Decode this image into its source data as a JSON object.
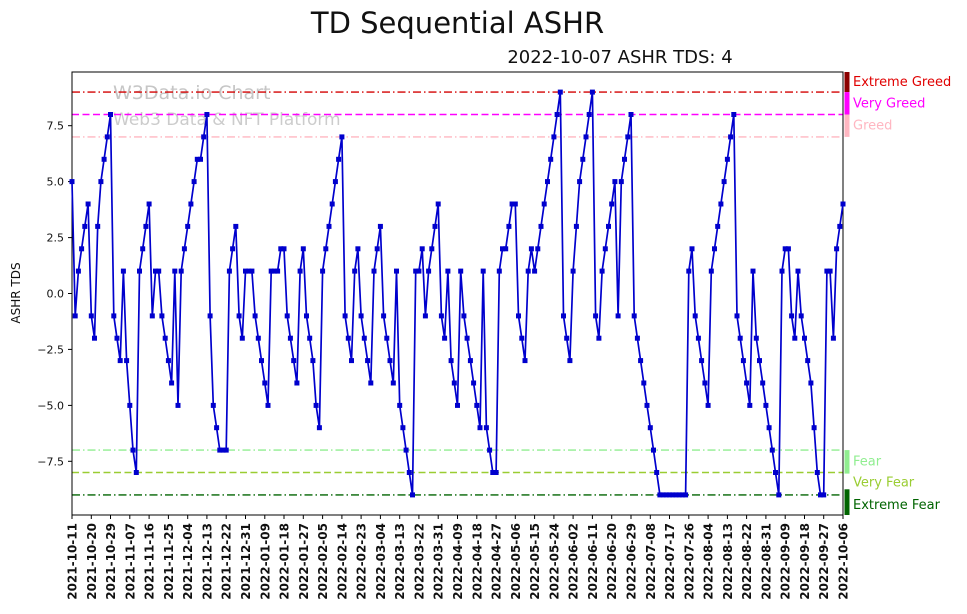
{
  "page": {
    "title": "TD Sequential ASHR",
    "subtitle": "2022-10-07 ASHR TDS: 4",
    "y_axis_label": "ASHR TDS",
    "watermark_line1": "W3Data.io Chart",
    "watermark_line2": "Web3 Data & NFT Platform"
  },
  "chart_data": {
    "type": "line",
    "title": "TD Sequential ASHR",
    "subtitle": "2022-10-07 ASHR TDS: 4",
    "ylabel": "ASHR TDS",
    "ylim": [
      -9.9,
      9.9
    ],
    "grid": false,
    "legend": false,
    "y_ticks": [
      7.5,
      5.0,
      2.5,
      0.0,
      -2.5,
      -5.0,
      -7.5
    ],
    "y_tick_labels": [
      "7.5",
      "5.0",
      "2.5",
      "0.0",
      "−2.5",
      "−5.0",
      "−7.5"
    ],
    "x_tick_every": 6,
    "x_tick_labels": [
      "2021-10-11",
      "2021-10-20",
      "2021-10-29",
      "2021-11-07",
      "2021-11-16",
      "2021-11-25",
      "2021-12-04",
      "2021-12-13",
      "2021-12-22",
      "2021-12-31",
      "2022-01-09",
      "2022-01-18",
      "2022-01-27",
      "2022-02-05",
      "2022-02-14",
      "2022-02-23",
      "2022-03-04",
      "2022-03-13",
      "2022-03-22",
      "2022-03-31",
      "2022-04-09",
      "2022-04-18",
      "2022-04-27",
      "2022-05-06",
      "2022-05-15",
      "2022-05-24",
      "2022-06-02",
      "2022-06-11",
      "2022-06-20",
      "2022-06-29",
      "2022-07-08",
      "2022-07-17",
      "2022-07-26",
      "2022-08-04",
      "2022-08-13",
      "2022-08-22",
      "2022-08-31",
      "2022-09-09",
      "2022-09-18",
      "2022-09-27",
      "2022-10-06"
    ],
    "series": [
      {
        "name": "ASHR TDS",
        "color": "#0000cd",
        "marker": "square",
        "values": [
          5,
          -1,
          1,
          2,
          3,
          4,
          -1,
          -2,
          3,
          5,
          6,
          7,
          8,
          -1,
          -2,
          -3,
          1,
          -3,
          -5,
          -7,
          -8,
          1,
          2,
          3,
          4,
          -1,
          1,
          1,
          -1,
          -2,
          -3,
          -4,
          1,
          -5,
          1,
          2,
          3,
          4,
          5,
          6,
          6,
          7,
          8,
          -1,
          -5,
          -6,
          -7,
          -7,
          -7,
          1,
          2,
          3,
          -1,
          -2,
          1,
          1,
          1,
          -1,
          -2,
          -3,
          -4,
          -5,
          1,
          1,
          1,
          2,
          2,
          -1,
          -2,
          -3,
          -4,
          1,
          2,
          -1,
          -2,
          -3,
          -5,
          -6,
          1,
          2,
          3,
          4,
          5,
          6,
          7,
          -1,
          -2,
          -3,
          1,
          2,
          -1,
          -2,
          -3,
          -4,
          1,
          2,
          3,
          -1,
          -2,
          -3,
          -4,
          1,
          -5,
          -6,
          -7,
          -8,
          -9,
          1,
          1,
          2,
          -1,
          1,
          2,
          3,
          4,
          -1,
          -2,
          1,
          -3,
          -4,
          -5,
          1,
          -1,
          -2,
          -3,
          -4,
          -5,
          -6,
          1,
          -6,
          -7,
          -8,
          -8,
          1,
          2,
          2,
          3,
          4,
          4,
          -1,
          -2,
          -3,
          1,
          2,
          1,
          2,
          3,
          4,
          5,
          6,
          7,
          8,
          9,
          -1,
          -2,
          -3,
          1,
          3,
          5,
          6,
          7,
          8,
          9,
          -1,
          -2,
          1,
          2,
          3,
          4,
          5,
          -1,
          5,
          6,
          7,
          8,
          -1,
          -2,
          -3,
          -4,
          -5,
          -6,
          -7,
          -8,
          -9,
          -9,
          -9,
          -9,
          -9,
          -9,
          -9,
          -9,
          -9,
          1,
          2,
          -1,
          -2,
          -3,
          -4,
          -5,
          1,
          2,
          3,
          4,
          5,
          6,
          7,
          8,
          -1,
          -2,
          -3,
          -4,
          -5,
          1,
          -2,
          -3,
          -4,
          -5,
          -6,
          -7,
          -8,
          -9,
          1,
          2,
          2,
          -1,
          -2,
          1,
          -1,
          -2,
          -3,
          -4,
          -6,
          -8,
          -9,
          -9,
          1,
          1,
          -2,
          2,
          3,
          4
        ]
      }
    ],
    "thresholds": [
      {
        "value": 9,
        "style": "dashdot",
        "color": "#d40000",
        "label": "Extreme Greed",
        "label_color": "#e00000",
        "label_y": 9.45
      },
      {
        "value": 8,
        "style": "dashed",
        "color": "#ff00ff",
        "label": "Very Greed",
        "label_color": "#ff00ff",
        "label_y": 8.5
      },
      {
        "value": 7,
        "style": "dashdot",
        "color": "#ffb6c1",
        "label": "Greed",
        "label_color": "#ffb6c1",
        "label_y": 7.5
      },
      {
        "value": -7,
        "style": "dashdot",
        "color": "#90ee90",
        "label": "Fear",
        "label_color": "#90ee90",
        "label_y": -7.5
      },
      {
        "value": -8,
        "style": "dashed",
        "color": "#9acd32",
        "label": "Very Fear",
        "label_color": "#9acd32",
        "label_y": -8.45
      },
      {
        "value": -9,
        "style": "dashdot",
        "color": "#006400",
        "label": "Extreme Fear",
        "label_color": "#006400",
        "label_y": -9.45
      }
    ],
    "right_bars": [
      {
        "from": 9.9,
        "to": 9.0,
        "color": "#8b0000"
      },
      {
        "from": 9.0,
        "to": 8.0,
        "color": "#ff00ff"
      },
      {
        "from": 8.0,
        "to": 7.0,
        "color": "#ffb6c1"
      },
      {
        "from": -7.0,
        "to": -8.05,
        "color": "#90ee90"
      },
      {
        "from": -8.75,
        "to": -9.9,
        "color": "#006400"
      }
    ]
  }
}
